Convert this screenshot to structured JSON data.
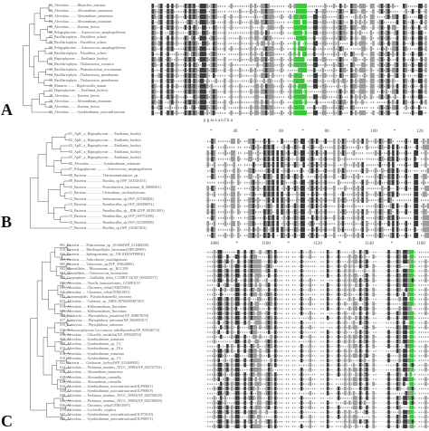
{
  "figure": {
    "panels": [
      {
        "letter": "A",
        "taxa": [
          "01_Alveolata ........ Rhynchos_marinus",
          "02_Alveolata ........ Alexandrium_tamarense",
          "03_Alveolata ........ Alexandrium_tamarense",
          "04_Alveolata ........ Alexandrium_minutum",
          "05_Alveolata ........ Karenia_brevis",
          "06_Pelagophyceae .... Aureococcus_anophagefferens",
          "07_Bacillariophyta .. Fistulifera_solaris",
          "08_Bacillariophyta .. Fistulifera_solaris",
          "09_Pelagophyceae .... Aureococcus_anophagefferens",
          "10_Bacillariophyta .. Fistulifera_solaris",
          "11_Haptophyceae ..... Emiliania_huxleyi",
          "12_Bacillariophyta .. Thalassiosira_oceanica",
          "13_Bacillariophyta .. Phaeodactylum_tricornutum",
          "14_Bacillariophyta .. Thalassiosira_pseudonana",
          "15_Bacillariophyta .. Thalassiosira_pseudonana",
          "16_Rhizaria ......... Bigelowiella_natans",
          "17_Haptophyceae ..... Emiliania_huxleyi",
          "18_Alveolata ........ Karenia_brevis",
          "19_Alveolata ........ Alexandrium_minutum",
          "20_Alveolata ........ Karenia_brevis",
          "21_Alveolata ........ Symbiodinium_microadriaticum"
        ],
        "ruler": [],
        "consensus": "p          g   ss  s  a  n   f       k      a"
      },
      {
        "letter": "B",
        "taxa": [
          "01_AplC_a_Haptophyceae ..... Emiliania_huxleyi",
          "02_AplC_a_Haptophyceae ..... Emiliania_huxleyi",
          "03_AplC_a_Haptophyceae ..... Emiliania_huxleyi",
          "04_AplC_a_Haptophyceae ..... Emiliania_huxleyi",
          "05_AplC_a_Haptophyceae ..... Emiliania_huxleyi",
          "06_Alveolata ............... Symbiodinium_minutum",
          "07_Pelagophyceae ........... Aureococcus_anophagefferens",
          "08_Bacteria ................ Thermoanaerobacter_sp.",
          "09_Bacteria ................ Bacillus_sp.(WP_041526151)",
          "10_Bacteria ................ Proteobacteria_bacterium_R_0000(001)",
          "11_Bacteria ................ Clostridium_saccharolyticum",
          "12_Bacteria ................ Selenomonas_sp.(WP_017040004)",
          "13_Bacteria ................ Paenibacillus_sp.(WP_045098051)",
          "14_Bacteria ................ Paenibacillus_sp._JDR-2(YP_002951891)",
          "15_Bacteria ................ Paenibacillus_sp.(WP_018751099)",
          "16_Bacteria ................ Paenibacillus_sp.(WP_022589090)",
          "17_Bacteria ................ Bacillus_sp.(WP_010267403)"
        ],
        "ruler": [
          "*",
          "40",
          "*",
          "60",
          "*",
          "80",
          "*",
          "100",
          "*",
          "120"
        ],
        "consensus": ""
      },
      {
        "letter": "C",
        "taxa": [
          "081_Bacteria ...... Polaromonas_sp._JS-666(WP_011488450)",
          "019_Bacteria ...... Rhodospirillales_bacterium(OHC48969)",
          "026_Bacteria ...... Sphingomonas_sp._YB-20(KWF88941)",
          "003_Bacteria ...... Arthrobacter_mucilaginosus",
          "005_Bacteria ...... Variovorax_sp.(WP_056630801)",
          "002_Mamiellales ... Micromonas_sp._RCC299",
          "004_Mamiellales ... Ostreococcus_lucimarinus",
          "056_Cryptophyta ... Guillardia_theta_CCMP2712(XP_005829577)",
          "001_Alveolata ..... Vitrella_brassicaformis_CCMP3155",
          "007_Alveolata ..... Chromera_velia(CEM15983)",
          "011_Alveolata ..... Chromera_velia(CEM21001)",
          "032_Stramenopiles . Pseudochattonella_farcimen",
          "027_Alveolata ..... Cafeteria_sp._NIES-2870(KFM07491)",
          "013_Alveolata ..... Klebsormidium_flaccidum",
          "055_Alveolata ..... Klebsormidium_flaccidum",
          "058_Eukaryota ..... Phytophthora_parasitica(XP_008879193)",
          "017_Eukaryota ..... Phytophthora_infestans(XP_002905017)",
          "019_Eukaryota ..... Phytophthora_ramorum",
          "031_Trebouxiophyceae Coccomyxa_subellipsoidea(XP_005646713)",
          "009_Alveolata ..... Chlorella_variabilis(XP_005849553)",
          "012_Alveolata ..... Symbiodinium_minutum",
          "008_Alveolata ..... Symbiodinium_sp._C1",
          "015_Alveolata ..... Symbiodinium_sp._D1a",
          "014_Alveolata ..... Symbiodinium_minutum",
          "010_Alveolata ..... Symbiodinium_sp._C3",
          "021_Bacteria ...... Geobacter_lovleyi(WP_012468903)",
          "024_Alveolata ..... Perkinsus_marinus_ATCC_50983(XP_002767551)",
          "029_Alveolata ..... Alexandrium_tamarense",
          "037_Alveolata ..... Alexandrium_catenella",
          "040_Alveolata ..... Alexandrium_catenella",
          "034_Alveolata ..... Symbiodinium_microadriaticum(OLP90611)",
          "038_Alveolata ..... Symbiodinium_microadriaticum(OLP90619)",
          "028_Alveolata ..... Perkinsus_marinus_ATCC_50983(XP_002768229)",
          "041_Alveolata ..... Perkinsus_marinus_ATCC_50983(XP_002780039)",
          "036_Alveolata ..... Chromera_velia(CEM13997)",
          "039_Alveolata ..... Cyclotella_cryptica",
          "047_Alveolata ..... Symbiodinium_microadriaticum(OLP78183)",
          "049_Alveolata ..... Symbiodinium_microadriaticum(OLP88971)"
        ],
        "ruler": [
          "1080",
          "*",
          "1100",
          "*",
          "1120",
          "*",
          "1140",
          "*",
          "1160"
        ],
        "consensus": ""
      }
    ]
  }
}
